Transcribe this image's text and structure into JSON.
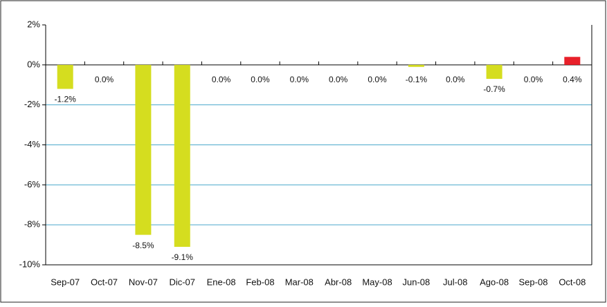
{
  "chart_data": {
    "type": "bar",
    "categories": [
      "Sep-07",
      "Oct-07",
      "Nov-07",
      "Dic-07",
      "Ene-08",
      "Feb-08",
      "Mar-08",
      "Abr-08",
      "May-08",
      "Jun-08",
      "Jul-08",
      "Ago-08",
      "Sep-08",
      "Oct-08"
    ],
    "values": [
      -1.2,
      0,
      -8.5,
      -9.1,
      0,
      0,
      0,
      0,
      0,
      -0.1,
      0,
      -0.7,
      0,
      0.4
    ],
    "value_labels": [
      "-1.2%",
      "0.0%",
      "-8.5%",
      "-9.1%",
      "0.0%",
      "0.0%",
      "0.0%",
      "0.0%",
      "0.0%",
      "-0.1%",
      "0.0%",
      "-0.7%",
      "0.0%",
      "0.4%"
    ],
    "colors": [
      "#d5dd1f",
      "#d5dd1f",
      "#d5dd1f",
      "#d5dd1f",
      "#d5dd1f",
      "#d5dd1f",
      "#d5dd1f",
      "#d5dd1f",
      "#d5dd1f",
      "#d5dd1f",
      "#d5dd1f",
      "#d5dd1f",
      "#d5dd1f",
      "#e8202a"
    ],
    "ylim": [
      -10,
      2
    ],
    "yticks": [
      {
        "value": 2,
        "label": "2%"
      },
      {
        "value": 0,
        "label": "0%"
      },
      {
        "value": -2,
        "label": "-2%"
      },
      {
        "value": -4,
        "label": "-4%"
      },
      {
        "value": -6,
        "label": "-6%"
      },
      {
        "value": -8,
        "label": "-8%"
      },
      {
        "value": -10,
        "label": "-10%"
      }
    ],
    "grid": true,
    "grid_color": "#4aa8cc"
  }
}
